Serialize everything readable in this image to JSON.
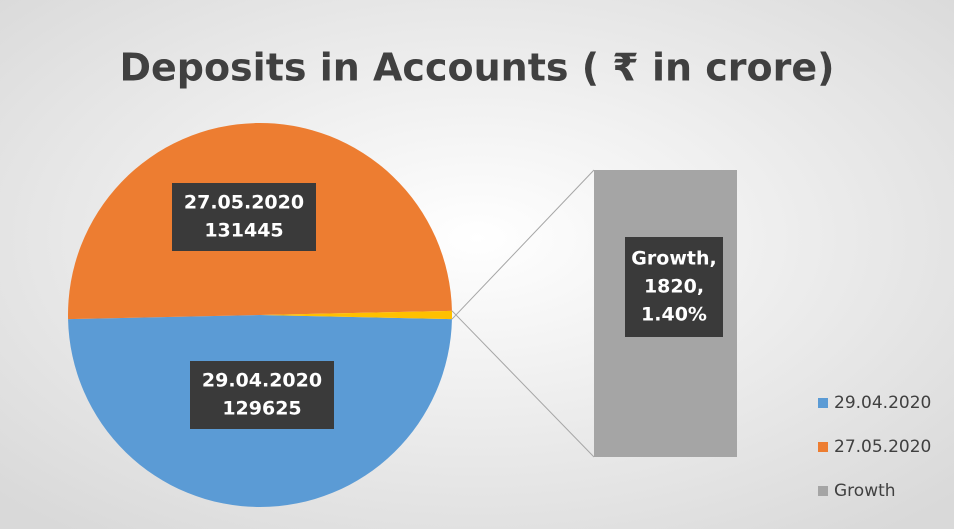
{
  "chart_data": {
    "type": "bar-of-pie",
    "title": "Deposits in Accounts ( ₹ in crore)",
    "categories": [
      "29.04.2020",
      "27.05.2020",
      "Growth"
    ],
    "values": [
      129625,
      131445,
      1820
    ],
    "colors": [
      "#5b9bd5",
      "#ed7d31",
      "#ffc000"
    ],
    "bar_color": "#a5a5a5",
    "bar_label_lines": [
      "Growth,",
      "1820,",
      "1.40%"
    ],
    "legend_labels": [
      "29.04.2020",
      "27.05.2020",
      "Growth"
    ],
    "legend_position": "bottom-right"
  }
}
